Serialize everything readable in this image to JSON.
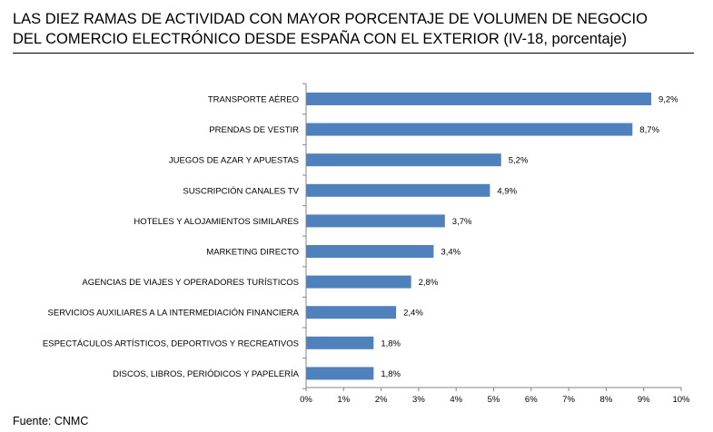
{
  "title_line1": "LAS DIEZ RAMAS DE ACTIVIDAD CON MAYOR PORCENTAJE DE VOLUMEN DE NEGOCIO",
  "title_line2": "DEL COMERCIO ELECTRÓNICO DESDE ESPAÑA CON EL EXTERIOR (IV-18, porcentaje)",
  "source": "Fuente: CNMC",
  "colors": {
    "bar": "#4f81bd",
    "axis": "#868686",
    "text": "#000000"
  },
  "chart_data": {
    "type": "bar",
    "orientation": "horizontal",
    "title": "LAS DIEZ RAMAS DE ACTIVIDAD CON MAYOR PORCENTAJE DE VOLUMEN DE NEGOCIO DEL COMERCIO ELECTRÓNICO DESDE ESPAÑA CON EL EXTERIOR (IV-18, porcentaje)",
    "categories": [
      "TRANSPORTE AÉREO",
      "PRENDAS DE VESTIR",
      "JUEGOS DE AZAR Y APUESTAS",
      "SUSCRIPCIÓN CANALES TV",
      "HOTELES  Y ALOJAMIENTOS SIMILARES",
      "MARKETING DIRECTO",
      "AGENCIAS DE VIAJES Y OPERADORES TURÍSTICOS",
      "SERVICIOS AUXILIARES A LA INTERMEDIACIÓN FINANCIERA",
      "ESPECTÁCULOS ARTÍSTICOS, DEPORTIVOS Y RECREATIVOS",
      "DISCOS, LIBROS, PERIÓDICOS Y PAPELERÍA"
    ],
    "values": [
      9.2,
      8.7,
      5.2,
      4.9,
      3.7,
      3.4,
      2.8,
      2.4,
      1.8,
      1.8
    ],
    "data_labels": [
      "9,2%",
      "8,7%",
      "5,2%",
      "4,9%",
      "3,7%",
      "3,4%",
      "2,8%",
      "2,4%",
      "1,8%",
      "1,8%"
    ],
    "xlim": [
      0,
      10
    ],
    "xticks": [
      0,
      1,
      2,
      3,
      4,
      5,
      6,
      7,
      8,
      9,
      10
    ],
    "xtick_labels": [
      "0%",
      "1%",
      "2%",
      "3%",
      "4%",
      "5%",
      "6%",
      "7%",
      "8%",
      "9%",
      "10%"
    ],
    "xlabel": "",
    "ylabel": "",
    "grid": false,
    "legend": "none"
  }
}
